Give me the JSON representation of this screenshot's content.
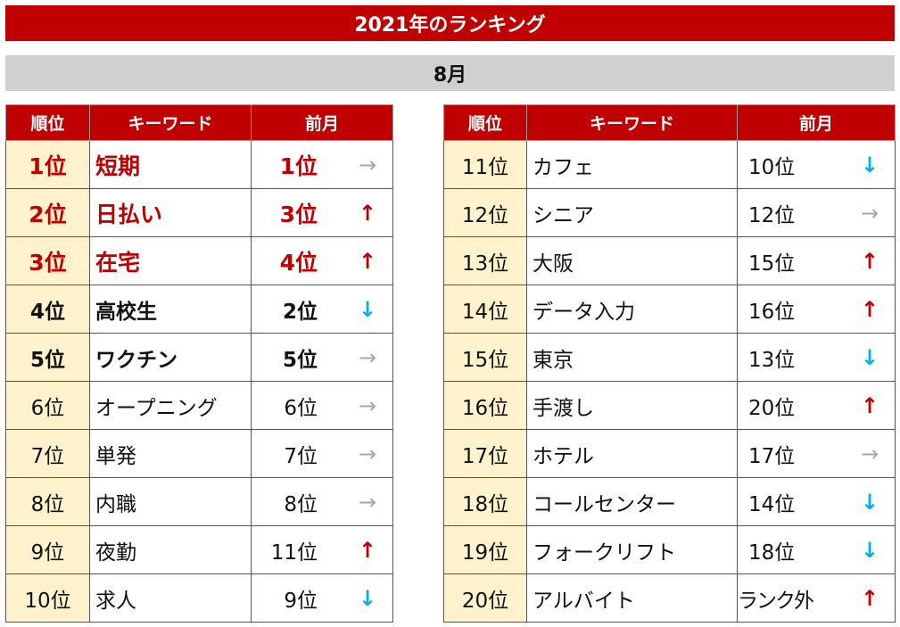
{
  "title": "2021年のランキング",
  "month": "8月",
  "headers": {
    "rank": "順位",
    "keyword": "キーワード",
    "prev": "前月"
  },
  "colors": {
    "accent": "#c00000",
    "up": "#c00000",
    "down": "#00b0f0",
    "same": "#a6a6a6",
    "rank_bg": "#fff2cc"
  },
  "left_rows": [
    {
      "rank": "1位",
      "keyword": "短期",
      "prev": "1位",
      "arrow": "→",
      "trend": "same",
      "style": "top"
    },
    {
      "rank": "2位",
      "keyword": "日払い",
      "prev": "3位",
      "arrow": "↑",
      "trend": "up",
      "style": "top"
    },
    {
      "rank": "3位",
      "keyword": "在宅",
      "prev": "4位",
      "arrow": "↑",
      "trend": "up",
      "style": "top"
    },
    {
      "rank": "4位",
      "keyword": "高校生",
      "prev": "2位",
      "arrow": "↓",
      "trend": "down",
      "style": "bold"
    },
    {
      "rank": "5位",
      "keyword": "ワクチン",
      "prev": "5位",
      "arrow": "→",
      "trend": "same",
      "style": "bold"
    },
    {
      "rank": "6位",
      "keyword": "オープニング",
      "prev": "6位",
      "arrow": "→",
      "trend": "same",
      "style": "normal"
    },
    {
      "rank": "7位",
      "keyword": "単発",
      "prev": "7位",
      "arrow": "→",
      "trend": "same",
      "style": "normal"
    },
    {
      "rank": "8位",
      "keyword": "内職",
      "prev": "8位",
      "arrow": "→",
      "trend": "same",
      "style": "normal"
    },
    {
      "rank": "9位",
      "keyword": "夜勤",
      "prev": "11位",
      "arrow": "↑",
      "trend": "up",
      "style": "normal"
    },
    {
      "rank": "10位",
      "keyword": "求人",
      "prev": "9位",
      "arrow": "↓",
      "trend": "down",
      "style": "normal"
    }
  ],
  "right_rows": [
    {
      "rank": "11位",
      "keyword": "カフェ",
      "prev": "10位",
      "arrow": "↓",
      "trend": "down",
      "style": "normal"
    },
    {
      "rank": "12位",
      "keyword": "シニア",
      "prev": "12位",
      "arrow": "→",
      "trend": "same",
      "style": "normal"
    },
    {
      "rank": "13位",
      "keyword": "大阪",
      "prev": "15位",
      "arrow": "↑",
      "trend": "up",
      "style": "normal"
    },
    {
      "rank": "14位",
      "keyword": "データ入力",
      "prev": "16位",
      "arrow": "↑",
      "trend": "up",
      "style": "normal"
    },
    {
      "rank": "15位",
      "keyword": "東京",
      "prev": "13位",
      "arrow": "↓",
      "trend": "down",
      "style": "normal"
    },
    {
      "rank": "16位",
      "keyword": "手渡し",
      "prev": "20位",
      "arrow": "↑",
      "trend": "up",
      "style": "normal"
    },
    {
      "rank": "17位",
      "keyword": "ホテル",
      "prev": "17位",
      "arrow": "→",
      "trend": "same",
      "style": "normal"
    },
    {
      "rank": "18位",
      "keyword": "コールセンター",
      "prev": "14位",
      "arrow": "↓",
      "trend": "down",
      "style": "normal"
    },
    {
      "rank": "19位",
      "keyword": "フォークリフト",
      "prev": "18位",
      "arrow": "↓",
      "trend": "down",
      "style": "normal"
    },
    {
      "rank": "20位",
      "keyword": "アルバイト",
      "prev": "ランク外",
      "arrow": "↑",
      "trend": "up",
      "style": "normal"
    }
  ]
}
